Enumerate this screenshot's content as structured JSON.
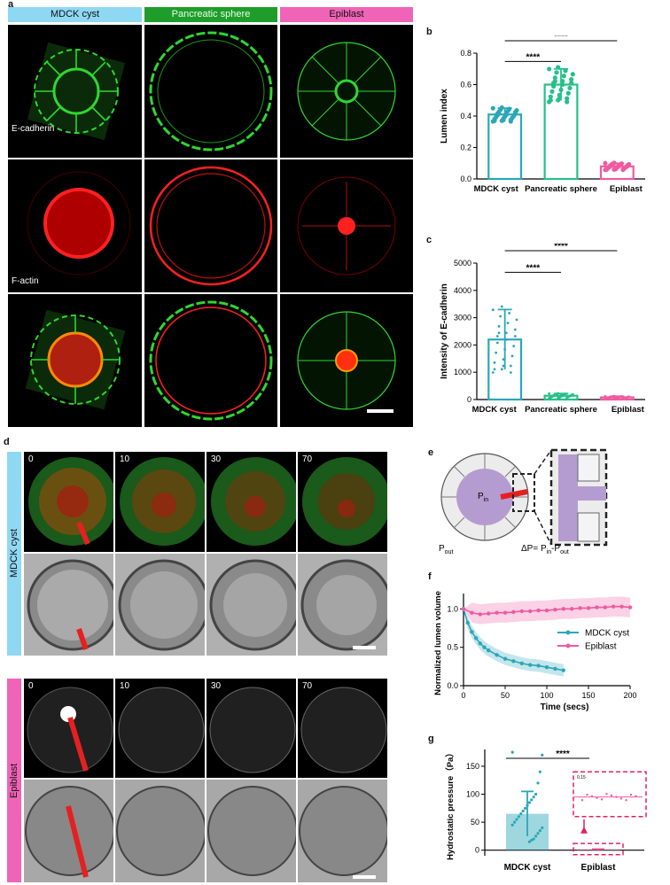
{
  "panel_labels": {
    "a": "a",
    "b": "b",
    "c": "c",
    "d": "d",
    "e": "e",
    "f": "f",
    "g": "g"
  },
  "colors": {
    "mdck": "#2aa7b8",
    "pancreatic": "#25c08a",
    "epiblast": "#ef5aa0",
    "mdck_header": "#8fd8f4",
    "pancreatic_header": "#1f9d2a",
    "epiblast_header": "#f064b8"
  },
  "panel_a": {
    "headers": [
      "MDCK cyst",
      "Pancreatic sphere",
      "Epiblast"
    ],
    "row_labels": [
      "E-cadherin",
      "F-actin"
    ]
  },
  "panel_d": {
    "side_labels": [
      "MDCK cyst",
      "Epiblast"
    ],
    "timepoints": [
      "0",
      "10",
      "30",
      "70"
    ]
  },
  "panel_e": {
    "p_in_main": "P",
    "p_in_sub": "in",
    "p_out_main": "P",
    "p_out_sub": "out",
    "delta_prefix": "ΔP= P",
    "delta_in": "in",
    "delta_mid": "-P",
    "delta_out": "out"
  },
  "chart_data": [
    {
      "id": "b",
      "type": "bar",
      "categories": [
        "MDCK cyst",
        "Pancreatic sphere",
        "Epiblast"
      ],
      "values": [
        0.41,
        0.6,
        0.08
      ],
      "sd": [
        0.04,
        0.1,
        0.02
      ],
      "ylabel": "Lumen index",
      "ylim": [
        0,
        0.8
      ],
      "yticks": [
        "0.0",
        "0.2",
        "0.4",
        "0.6",
        "0.8"
      ],
      "significance": [
        {
          "from": 0,
          "to": 1,
          "label": "****"
        },
        {
          "from": 0,
          "to": 2,
          "label": "****"
        }
      ]
    },
    {
      "id": "c",
      "type": "bar",
      "categories": [
        "MDCK cyst",
        "Pancreatic sphere",
        "Epiblast"
      ],
      "values": [
        2200,
        140,
        80
      ],
      "sd": [
        1100,
        80,
        40
      ],
      "ylabel": "Intensity of E-cadherin",
      "ylim": [
        0,
        5000
      ],
      "yticks": [
        "0",
        "1000",
        "2000",
        "3000",
        "4000",
        "5000"
      ],
      "significance": [
        {
          "from": 0,
          "to": 1,
          "label": "****"
        },
        {
          "from": 0,
          "to": 2,
          "label": "****"
        }
      ]
    },
    {
      "id": "f",
      "type": "line",
      "xlabel": "Time (secs)",
      "ylabel": "Normalized lumen volume",
      "xlim": [
        0,
        200
      ],
      "ylim": [
        0,
        1.2
      ],
      "xticks": [
        "0",
        "50",
        "100",
        "150",
        "200"
      ],
      "yticks": [
        "0.0",
        "0.5",
        "1.0"
      ],
      "series": [
        {
          "name": "MDCK cyst",
          "x": [
            0,
            5,
            10,
            15,
            20,
            25,
            30,
            40,
            50,
            60,
            70,
            80,
            90,
            100,
            110,
            120
          ],
          "y": [
            1.0,
            0.82,
            0.7,
            0.62,
            0.55,
            0.5,
            0.46,
            0.4,
            0.35,
            0.32,
            0.29,
            0.27,
            0.26,
            0.24,
            0.22,
            0.2
          ]
        },
        {
          "name": "Epiblast",
          "x": [
            0,
            10,
            20,
            30,
            40,
            50,
            60,
            70,
            80,
            90,
            100,
            110,
            120,
            130,
            140,
            150,
            160,
            170,
            180,
            190,
            200
          ],
          "y": [
            1.0,
            0.95,
            0.93,
            0.94,
            0.95,
            0.95,
            0.96,
            0.97,
            0.97,
            0.98,
            0.98,
            0.99,
            1.0,
            1.0,
            1.01,
            1.01,
            1.02,
            1.02,
            1.03,
            1.03,
            1.02
          ]
        }
      ]
    },
    {
      "id": "g",
      "type": "bar",
      "categories": [
        "MDCK cyst",
        "Epiblast"
      ],
      "values": [
        65,
        1
      ],
      "sd": [
        40,
        1
      ],
      "ylabel": "Hydrostatic pressure（Pa）",
      "ylim": [
        -10,
        180
      ],
      "yticks": [
        "0",
        "50",
        "100",
        "150"
      ],
      "points_mdck": [
        175,
        170,
        140,
        120,
        100,
        95,
        90,
        85,
        80,
        75,
        70,
        65,
        60,
        55,
        50,
        45,
        40,
        35,
        30,
        25,
        20,
        18,
        15
      ],
      "inset_ytick": "0.15",
      "significance": [
        {
          "from": 0,
          "to": 1,
          "label": "****"
        }
      ]
    }
  ]
}
